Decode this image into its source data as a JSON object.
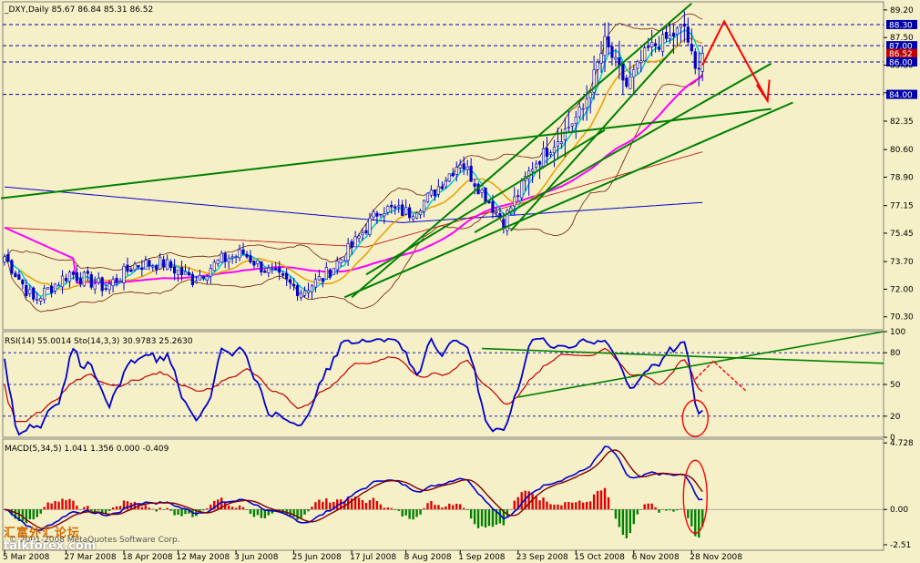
{
  "chart_data": [
    {
      "type": "candlestick",
      "panel": "price",
      "header": "_DXY,Daily  85.67 86.84 85.31 86.52",
      "ylim": [
        69.5,
        89.7
      ],
      "y_ticks": [
        "89.20",
        "87.50",
        "85.80",
        "84.10",
        "82.35",
        "80.60",
        "78.90",
        "77.15",
        "75.45",
        "73.70",
        "72.00",
        "70.30"
      ],
      "price_labels": [
        {
          "text": "88.30",
          "value": 88.3,
          "color": "#0000aa"
        },
        {
          "text": "87.00",
          "value": 87.0,
          "color": "#0000aa"
        },
        {
          "text": "86.52",
          "value": 86.52,
          "color": "#c00000"
        },
        {
          "text": "86.00",
          "value": 86.0,
          "color": "#0000aa"
        },
        {
          "text": "84.00",
          "value": 84.0,
          "color": "#0000aa"
        }
      ],
      "anchors": [
        {
          "i": 0,
          "v": 74.0
        },
        {
          "i": 8,
          "v": 71.3
        },
        {
          "i": 18,
          "v": 73.0
        },
        {
          "i": 28,
          "v": 72.1
        },
        {
          "i": 36,
          "v": 73.5
        },
        {
          "i": 44,
          "v": 73.6
        },
        {
          "i": 52,
          "v": 72.6
        },
        {
          "i": 60,
          "v": 73.8
        },
        {
          "i": 66,
          "v": 74.2
        },
        {
          "i": 74,
          "v": 72.9
        },
        {
          "i": 82,
          "v": 71.9
        },
        {
          "i": 88,
          "v": 72.7
        },
        {
          "i": 96,
          "v": 74.6
        },
        {
          "i": 104,
          "v": 77.0
        },
        {
          "i": 112,
          "v": 76.7
        },
        {
          "i": 118,
          "v": 77.8
        },
        {
          "i": 126,
          "v": 79.9
        },
        {
          "i": 132,
          "v": 78.0
        },
        {
          "i": 138,
          "v": 76.2
        },
        {
          "i": 146,
          "v": 79.6
        },
        {
          "i": 154,
          "v": 81.5
        },
        {
          "i": 160,
          "v": 83.1
        },
        {
          "i": 166,
          "v": 87.2
        },
        {
          "i": 172,
          "v": 84.5
        },
        {
          "i": 178,
          "v": 86.8
        },
        {
          "i": 184,
          "v": 87.5
        },
        {
          "i": 188,
          "v": 88.2
        },
        {
          "i": 191,
          "v": 85.4
        },
        {
          "i": 193,
          "v": 86.52
        }
      ],
      "moving_averages": [
        {
          "name": "ma-fast",
          "color": "#00c8d0",
          "period": 5
        },
        {
          "name": "ma-mid",
          "color": "#e8a000",
          "period": 13
        },
        {
          "name": "ma-slow",
          "color": "#ff00ff",
          "period": 45
        },
        {
          "name": "ma-long",
          "color": "#0000cc",
          "period": 120
        },
        {
          "name": "ma-red",
          "color": "#c00000",
          "period": 90
        }
      ],
      "dashed_levels": [
        88.3,
        87.0,
        86.0,
        84.0
      ],
      "dashed_color": "#0000aa",
      "annotation_color": "#ff0000",
      "trendline_color": "#008000"
    },
    {
      "type": "line",
      "panel": "oscillator",
      "header": "RSI(14) 55.0014  Sto(14,3,3) 30.9783 25.2630",
      "ylim": [
        0,
        100
      ],
      "y_ticks": [
        "100",
        "80",
        "50",
        "20",
        "0"
      ],
      "levels": [
        80,
        50,
        20
      ],
      "series": [
        {
          "name": "RSI(14)",
          "color": "#c00000"
        },
        {
          "name": "Sto(14,3,3)",
          "color": "#0000cc"
        }
      ]
    },
    {
      "type": "bar",
      "panel": "macd",
      "header": "MACD(5,34,5) 1.041 1.356 0.000 -0.409",
      "ylim": [
        -2.9,
        5.0
      ],
      "y_ticks": [
        "4.728",
        "0.00",
        "-2.51"
      ],
      "series": [
        {
          "name": "histogram-positive",
          "color": "#e00000"
        },
        {
          "name": "histogram-negative",
          "color": "#008000"
        },
        {
          "name": "macd",
          "color": "#0000cc"
        },
        {
          "name": "signal",
          "color": "#800000"
        }
      ]
    }
  ],
  "x_axis": {
    "date_labels": [
      "5 Mar 2008",
      "27 Mar 2008",
      "18 Apr 2008",
      "12 May 2008",
      "3 Jun 2008",
      "25 Jun 2008",
      "17 Jul 2008",
      "8 Aug 2008",
      "1 Sep 2008",
      "23 Sep 2008",
      "15 Oct 2008",
      "6 Nov 2008",
      "28 Nov 2008"
    ],
    "date_label_bars": [
      0,
      17,
      33,
      48,
      64,
      80,
      96,
      111,
      126,
      142,
      158,
      174,
      190
    ]
  },
  "watermark": {
    "logo_text": "汇富外汇论坛",
    "site": "talkforex.com",
    "copyright": "© 2001-2008 MetaQuotes Software Corp."
  }
}
